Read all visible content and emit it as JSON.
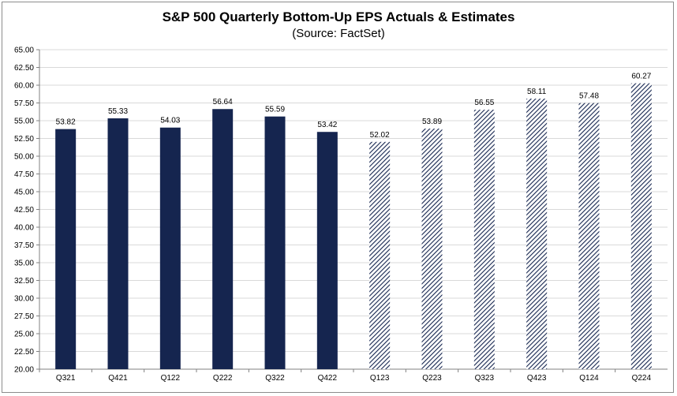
{
  "chart_data": {
    "type": "bar",
    "title": "S&P 500 Quarterly Bottom-Up EPS Actuals & Estimates",
    "subtitle": "(Source: FactSet)",
    "categories": [
      "Q321",
      "Q421",
      "Q122",
      "Q222",
      "Q322",
      "Q422",
      "Q123",
      "Q223",
      "Q323",
      "Q423",
      "Q124",
      "Q224"
    ],
    "values": [
      53.82,
      55.33,
      54.03,
      56.64,
      55.59,
      53.42,
      52.02,
      53.89,
      56.55,
      58.11,
      57.48,
      60.27
    ],
    "value_labels": [
      "53.82",
      "55.33",
      "54.03",
      "56.64",
      "55.59",
      "53.42",
      "52.02",
      "53.89",
      "56.55",
      "58.11",
      "57.48",
      "60.27"
    ],
    "kind": [
      "actual",
      "actual",
      "actual",
      "actual",
      "actual",
      "actual",
      "estimate",
      "estimate",
      "estimate",
      "estimate",
      "estimate",
      "estimate"
    ],
    "ylim": [
      20,
      65
    ],
    "ytick_labels": [
      "20.00",
      "22.50",
      "25.00",
      "27.50",
      "30.00",
      "32.50",
      "35.00",
      "37.50",
      "40.00",
      "42.50",
      "45.00",
      "47.50",
      "50.00",
      "52.50",
      "55.00",
      "57.50",
      "60.00",
      "62.50",
      "65.00"
    ],
    "grid": true,
    "colors": {
      "actual": "#15254f",
      "estimate_stripe": "#15254f",
      "grid": "#d9d9d9",
      "axis": "#808080"
    }
  }
}
